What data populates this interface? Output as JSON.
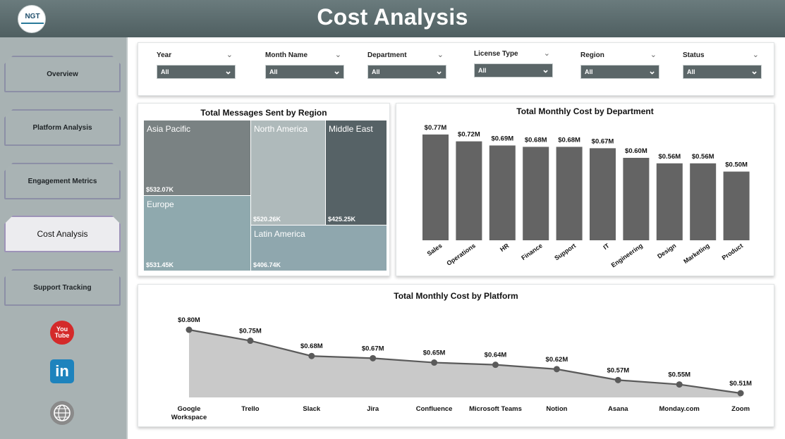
{
  "header": {
    "title": "Cost Analysis",
    "logo_text": "NGT"
  },
  "sidebar": {
    "items": [
      {
        "label": "Overview"
      },
      {
        "label": "Platform Analysis"
      },
      {
        "label": "Engagement Metrics"
      },
      {
        "label": "Cost Analysis",
        "active": true
      },
      {
        "label": "Support Tracking"
      }
    ],
    "social": {
      "youtube_text": "You Tube",
      "linkedin_text": "in"
    }
  },
  "filters": [
    {
      "label": "Year",
      "value": "All"
    },
    {
      "label": "Month Name",
      "value": "All"
    },
    {
      "label": "Department",
      "value": "All"
    },
    {
      "label": "License Type",
      "value": "All"
    },
    {
      "label": "Region",
      "value": "All"
    },
    {
      "label": "Status",
      "value": "All"
    }
  ],
  "colors": {
    "header": "#5b6a6c",
    "sidebar": "#a8b2b3",
    "bar": "#646464",
    "treemap": [
      "#7a8283",
      "#afbabb",
      "#566266",
      "#8fa9ae",
      "#8fa7ae"
    ]
  },
  "chart_data": [
    {
      "type": "treemap",
      "title": "Total Messages Sent by Region",
      "items": [
        {
          "name": "Asia Pacific",
          "label": "$532.07K",
          "value": 532.07
        },
        {
          "name": "Europe",
          "label": "$531.45K",
          "value": 531.45
        },
        {
          "name": "North America",
          "label": "$520.26K",
          "value": 520.26
        },
        {
          "name": "Middle East",
          "label": "$425.25K",
          "value": 425.25
        },
        {
          "name": "Latin America",
          "label": "$406.74K",
          "value": 406.74
        }
      ]
    },
    {
      "type": "bar",
      "title": "Total Monthly Cost by Department",
      "categories": [
        "Sales",
        "Operations",
        "HR",
        "Finance",
        "Support",
        "IT",
        "Engineering",
        "Design",
        "Marketing",
        "Product"
      ],
      "values": [
        0.77,
        0.72,
        0.69,
        0.68,
        0.68,
        0.67,
        0.6,
        0.56,
        0.56,
        0.5
      ],
      "labels": [
        "$0.77M",
        "$0.72M",
        "$0.69M",
        "$0.68M",
        "$0.68M",
        "$0.67M",
        "$0.60M",
        "$0.56M",
        "$0.56M",
        "$0.50M"
      ]
    },
    {
      "type": "area",
      "title": "Total Monthly Cost by Platform",
      "categories": [
        "Google Workspace",
        "Trello",
        "Slack",
        "Jira",
        "Confluence",
        "Microsoft Teams",
        "Notion",
        "Asana",
        "Monday.com",
        "Zoom"
      ],
      "values": [
        0.8,
        0.75,
        0.68,
        0.67,
        0.65,
        0.64,
        0.62,
        0.57,
        0.55,
        0.51
      ],
      "labels": [
        "$0.80M",
        "$0.75M",
        "$0.68M",
        "$0.67M",
        "$0.65M",
        "$0.64M",
        "$0.62M",
        "$0.57M",
        "$0.55M",
        "$0.51M"
      ]
    }
  ]
}
